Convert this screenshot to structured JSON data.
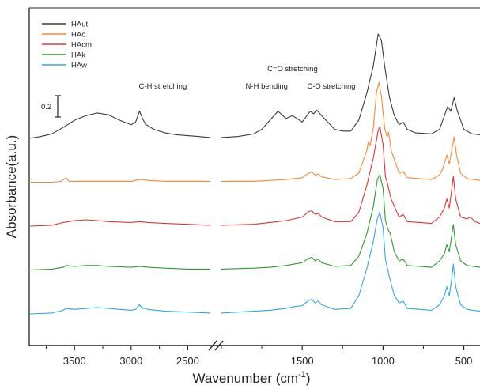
{
  "chart_data": {
    "type": "line",
    "xlabel_main": "Wavenumber (cm",
    "xlabel_sup": "-1",
    "xlabel_close": ")",
    "ylabel": "Absorbance(a.u.)",
    "x_reversed": true,
    "x_break": true,
    "x_segments": [
      [
        3900,
        2300
      ],
      [
        2000,
        400
      ]
    ],
    "xticks": [
      3500,
      3000,
      2500,
      1500,
      1000,
      500
    ],
    "scale_bar": {
      "label": "0.2",
      "value": 0.2
    },
    "legend_position": "top-left",
    "annotations": [
      {
        "text": "C-H stretching",
        "x": 2720
      },
      {
        "text": "N-H bending",
        "x": 1720
      },
      {
        "text": "C=O stretching",
        "x": 1560
      },
      {
        "text": "C-O stretching",
        "x": 1320
      }
    ],
    "series": [
      {
        "name": "HAut",
        "color": "#3a3a3a",
        "offset": 4.0,
        "points": [
          [
            3900,
            0
          ],
          [
            3800,
            0.02
          ],
          [
            3700,
            0.05
          ],
          [
            3600,
            0.12
          ],
          [
            3500,
            0.2
          ],
          [
            3400,
            0.25
          ],
          [
            3300,
            0.28
          ],
          [
            3200,
            0.26
          ],
          [
            3100,
            0.2
          ],
          [
            3000,
            0.15
          ],
          [
            2960,
            0.18
          ],
          [
            2925,
            0.3
          ],
          [
            2900,
            0.22
          ],
          [
            2870,
            0.15
          ],
          [
            2850,
            0.14
          ],
          [
            2800,
            0.1
          ],
          [
            2700,
            0.06
          ],
          [
            2600,
            0.04
          ],
          [
            2500,
            0.03
          ],
          [
            2400,
            0.02
          ],
          [
            2300,
            0.01
          ],
          [
            2000,
            0.01
          ],
          [
            1900,
            0.02
          ],
          [
            1800,
            0.05
          ],
          [
            1750,
            0.1
          ],
          [
            1700,
            0.2
          ],
          [
            1650,
            0.3
          ],
          [
            1600,
            0.22
          ],
          [
            1560,
            0.25
          ],
          [
            1500,
            0.18
          ],
          [
            1450,
            0.3
          ],
          [
            1430,
            0.27
          ],
          [
            1410,
            0.31
          ],
          [
            1380,
            0.25
          ],
          [
            1300,
            0.1
          ],
          [
            1250,
            0.08
          ],
          [
            1200,
            0.08
          ],
          [
            1150,
            0.2
          ],
          [
            1100,
            0.5
          ],
          [
            1060,
            0.8
          ],
          [
            1030,
            1.15
          ],
          [
            1010,
            1.08
          ],
          [
            990,
            0.8
          ],
          [
            960,
            0.45
          ],
          [
            930,
            0.25
          ],
          [
            900,
            0.15
          ],
          [
            875,
            0.18
          ],
          [
            850,
            0.1
          ],
          [
            800,
            0.06
          ],
          [
            700,
            0.05
          ],
          [
            650,
            0.1
          ],
          [
            620,
            0.25
          ],
          [
            600,
            0.35
          ],
          [
            580,
            0.3
          ],
          [
            560,
            0.45
          ],
          [
            540,
            0.3
          ],
          [
            500,
            0.1
          ],
          [
            450,
            0.05
          ],
          [
            400,
            0.04
          ]
        ]
      },
      {
        "name": "HAc",
        "color": "#f08b3a",
        "offset": 3.0,
        "points": [
          [
            3900,
            0
          ],
          [
            3700,
            0
          ],
          [
            3620,
            0.01
          ],
          [
            3575,
            0.05
          ],
          [
            3550,
            0.01
          ],
          [
            3400,
            0.01
          ],
          [
            3200,
            0.01
          ],
          [
            3000,
            0.01
          ],
          [
            2925,
            0.03
          ],
          [
            2850,
            0.02
          ],
          [
            2700,
            0.01
          ],
          [
            2500,
            0.01
          ],
          [
            2300,
            0.01
          ],
          [
            2000,
            0.01
          ],
          [
            1800,
            0.01
          ],
          [
            1700,
            0.02
          ],
          [
            1600,
            0.03
          ],
          [
            1500,
            0.05
          ],
          [
            1460,
            0.1
          ],
          [
            1440,
            0.11
          ],
          [
            1420,
            0.08
          ],
          [
            1400,
            0.09
          ],
          [
            1380,
            0.06
          ],
          [
            1300,
            0.03
          ],
          [
            1200,
            0.04
          ],
          [
            1150,
            0.1
          ],
          [
            1100,
            0.35
          ],
          [
            1090,
            0.45
          ],
          [
            1080,
            0.4
          ],
          [
            1060,
            0.6
          ],
          [
            1040,
            1.0
          ],
          [
            1025,
            1.1
          ],
          [
            1010,
            0.95
          ],
          [
            990,
            0.6
          ],
          [
            975,
            0.5
          ],
          [
            965,
            0.55
          ],
          [
            950,
            0.35
          ],
          [
            900,
            0.1
          ],
          [
            875,
            0.12
          ],
          [
            850,
            0.05
          ],
          [
            700,
            0.03
          ],
          [
            650,
            0.08
          ],
          [
            630,
            0.15
          ],
          [
            605,
            0.3
          ],
          [
            590,
            0.2
          ],
          [
            575,
            0.35
          ],
          [
            560,
            0.5
          ],
          [
            545,
            0.3
          ],
          [
            520,
            0.1
          ],
          [
            480,
            0.04
          ],
          [
            400,
            0.02
          ]
        ]
      },
      {
        "name": "HAcm",
        "color": "#e03434",
        "offset": 2.0,
        "points": [
          [
            3900,
            0
          ],
          [
            3700,
            0.01
          ],
          [
            3600,
            0.04
          ],
          [
            3500,
            0.06
          ],
          [
            3400,
            0.07
          ],
          [
            3300,
            0.06
          ],
          [
            3200,
            0.05
          ],
          [
            3000,
            0.04
          ],
          [
            2925,
            0.05
          ],
          [
            2850,
            0.04
          ],
          [
            2700,
            0.03
          ],
          [
            2500,
            0.02
          ],
          [
            2300,
            0.01
          ],
          [
            2000,
            0.01
          ],
          [
            1800,
            0.02
          ],
          [
            1700,
            0.04
          ],
          [
            1600,
            0.06
          ],
          [
            1500,
            0.1
          ],
          [
            1460,
            0.16
          ],
          [
            1440,
            0.17
          ],
          [
            1420,
            0.13
          ],
          [
            1400,
            0.14
          ],
          [
            1380,
            0.1
          ],
          [
            1300,
            0.05
          ],
          [
            1200,
            0.05
          ],
          [
            1150,
            0.15
          ],
          [
            1100,
            0.45
          ],
          [
            1060,
            0.75
          ],
          [
            1030,
            1.05
          ],
          [
            1020,
            1.1
          ],
          [
            1000,
            0.9
          ],
          [
            985,
            0.55
          ],
          [
            970,
            0.45
          ],
          [
            950,
            0.3
          ],
          [
            900,
            0.1
          ],
          [
            875,
            0.13
          ],
          [
            850,
            0.05
          ],
          [
            700,
            0.03
          ],
          [
            650,
            0.1
          ],
          [
            620,
            0.2
          ],
          [
            605,
            0.3
          ],
          [
            590,
            0.2
          ],
          [
            575,
            0.4
          ],
          [
            565,
            0.55
          ],
          [
            550,
            0.3
          ],
          [
            520,
            0.1
          ],
          [
            480,
            0.08
          ],
          [
            460,
            0.1
          ],
          [
            430,
            0.05
          ],
          [
            400,
            0.03
          ]
        ]
      },
      {
        "name": "HAk",
        "color": "#2e9b2e",
        "offset": 1.0,
        "points": [
          [
            3900,
            0
          ],
          [
            3700,
            0.01
          ],
          [
            3600,
            0.03
          ],
          [
            3575,
            0.05
          ],
          [
            3500,
            0.04
          ],
          [
            3400,
            0.05
          ],
          [
            3300,
            0.05
          ],
          [
            3200,
            0.04
          ],
          [
            3000,
            0.03
          ],
          [
            2925,
            0.04
          ],
          [
            2850,
            0.03
          ],
          [
            2700,
            0.02
          ],
          [
            2500,
            0.01
          ],
          [
            2300,
            0.01
          ],
          [
            2000,
            0.01
          ],
          [
            1800,
            0.02
          ],
          [
            1700,
            0.03
          ],
          [
            1600,
            0.05
          ],
          [
            1500,
            0.08
          ],
          [
            1460,
            0.13
          ],
          [
            1440,
            0.14
          ],
          [
            1420,
            0.1
          ],
          [
            1400,
            0.12
          ],
          [
            1380,
            0.08
          ],
          [
            1300,
            0.04
          ],
          [
            1200,
            0.05
          ],
          [
            1150,
            0.15
          ],
          [
            1100,
            0.4
          ],
          [
            1060,
            0.7
          ],
          [
            1035,
            1.0
          ],
          [
            1020,
            1.05
          ],
          [
            1000,
            0.9
          ],
          [
            985,
            0.55
          ],
          [
            970,
            0.45
          ],
          [
            955,
            0.4
          ],
          [
            930,
            0.2
          ],
          [
            900,
            0.1
          ],
          [
            875,
            0.12
          ],
          [
            850,
            0.05
          ],
          [
            700,
            0.03
          ],
          [
            650,
            0.1
          ],
          [
            620,
            0.18
          ],
          [
            605,
            0.28
          ],
          [
            590,
            0.2
          ],
          [
            575,
            0.38
          ],
          [
            565,
            0.5
          ],
          [
            550,
            0.28
          ],
          [
            520,
            0.1
          ],
          [
            480,
            0.05
          ],
          [
            400,
            0.03
          ]
        ]
      },
      {
        "name": "HAw",
        "color": "#2ea8e0",
        "offset": 0.0,
        "points": [
          [
            3900,
            0
          ],
          [
            3700,
            0.01
          ],
          [
            3600,
            0.04
          ],
          [
            3575,
            0.06
          ],
          [
            3500,
            0.05
          ],
          [
            3400,
            0.06
          ],
          [
            3300,
            0.07
          ],
          [
            3200,
            0.06
          ],
          [
            3100,
            0.05
          ],
          [
            3000,
            0.04
          ],
          [
            2960,
            0.05
          ],
          [
            2925,
            0.1
          ],
          [
            2900,
            0.06
          ],
          [
            2870,
            0.06
          ],
          [
            2850,
            0.05
          ],
          [
            2700,
            0.03
          ],
          [
            2500,
            0.02
          ],
          [
            2300,
            0.01
          ],
          [
            2000,
            0.01
          ],
          [
            1800,
            0.03
          ],
          [
            1700,
            0.04
          ],
          [
            1600,
            0.06
          ],
          [
            1550,
            0.08
          ],
          [
            1500,
            0.09
          ],
          [
            1460,
            0.15
          ],
          [
            1440,
            0.16
          ],
          [
            1420,
            0.12
          ],
          [
            1400,
            0.14
          ],
          [
            1380,
            0.1
          ],
          [
            1300,
            0.05
          ],
          [
            1200,
            0.06
          ],
          [
            1150,
            0.2
          ],
          [
            1100,
            0.5
          ],
          [
            1060,
            0.8
          ],
          [
            1035,
            1.05
          ],
          [
            1020,
            1.12
          ],
          [
            1000,
            0.95
          ],
          [
            985,
            0.6
          ],
          [
            960,
            0.4
          ],
          [
            930,
            0.2
          ],
          [
            900,
            0.12
          ],
          [
            875,
            0.14
          ],
          [
            850,
            0.06
          ],
          [
            700,
            0.04
          ],
          [
            650,
            0.1
          ],
          [
            620,
            0.2
          ],
          [
            605,
            0.3
          ],
          [
            590,
            0.2
          ],
          [
            575,
            0.38
          ],
          [
            565,
            0.55
          ],
          [
            550,
            0.3
          ],
          [
            520,
            0.1
          ],
          [
            480,
            0.05
          ],
          [
            400,
            0.03
          ]
        ]
      }
    ]
  }
}
